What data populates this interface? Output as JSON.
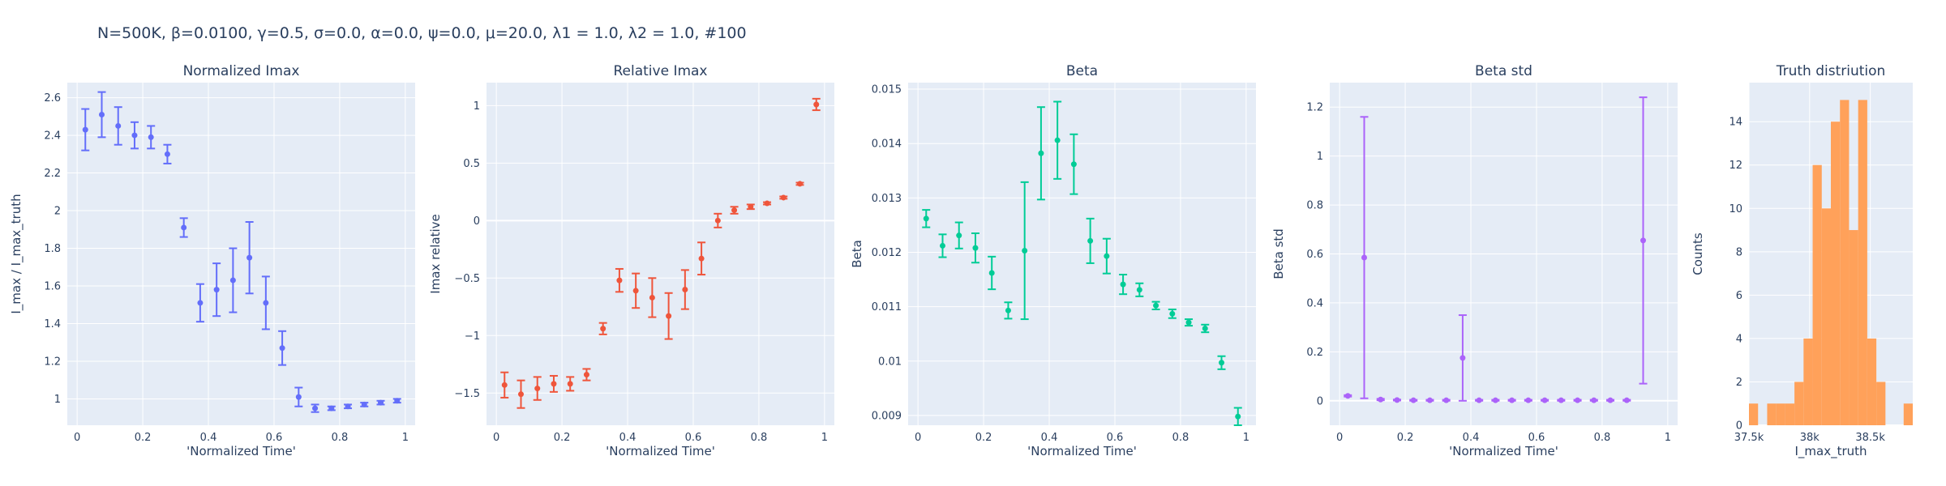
{
  "title": "N=500K, β=0.0100, γ=0.5, σ=0.0,  α=0.0, ψ=0.0, μ=20.0, λ1 = 1.0, λ2 = 1.0, #100",
  "chart_data": [
    {
      "type": "scatter",
      "title": "Normalized Imax",
      "xlabel": "'Normalized Time'",
      "ylabel": "I_max / I_max_truth",
      "color": "#636efa",
      "xlim": [
        -0.03,
        1.03
      ],
      "ylim": [
        0.86,
        2.68
      ],
      "xticks": [
        0,
        0.2,
        0.4,
        0.6,
        0.8,
        1
      ],
      "xticklabels": [
        "0",
        "0.2",
        "0.4",
        "0.6",
        "0.8",
        "1"
      ],
      "yticks": [
        1,
        1.2,
        1.4,
        1.6,
        1.8,
        2,
        2.2,
        2.4,
        2.6
      ],
      "yticklabels": [
        "1",
        "1.2",
        "1.4",
        "1.6",
        "1.8",
        "2",
        "2.2",
        "2.4",
        "2.6"
      ],
      "x": [
        0.025,
        0.075,
        0.125,
        0.175,
        0.225,
        0.275,
        0.325,
        0.375,
        0.425,
        0.475,
        0.525,
        0.575,
        0.625,
        0.675,
        0.725,
        0.775,
        0.825,
        0.875,
        0.925,
        0.975
      ],
      "y": [
        2.43,
        2.51,
        2.45,
        2.4,
        2.39,
        2.3,
        1.91,
        1.51,
        1.58,
        1.63,
        1.75,
        1.51,
        1.27,
        1.01,
        0.95,
        0.95,
        0.96,
        0.97,
        0.98,
        0.99
      ],
      "error": [
        0.11,
        0.12,
        0.1,
        0.07,
        0.06,
        0.05,
        0.05,
        0.1,
        0.14,
        0.17,
        0.19,
        0.14,
        0.09,
        0.05,
        0.02,
        0.01,
        0.01,
        0.01,
        0.01,
        0.01
      ]
    },
    {
      "type": "scatter",
      "title": "Relative Imax",
      "xlabel": "'Normalized Time'",
      "ylabel": "Imax relative",
      "color": "#ef553b",
      "xlim": [
        -0.03,
        1.03
      ],
      "ylim": [
        -1.78,
        1.2
      ],
      "xticks": [
        0,
        0.2,
        0.4,
        0.6,
        0.8,
        1
      ],
      "xticklabels": [
        "0",
        "0.2",
        "0.4",
        "0.6",
        "0.8",
        "1"
      ],
      "yticks": [
        -1.5,
        -1,
        -0.5,
        0,
        0.5,
        1
      ],
      "yticklabels": [
        "−1.5",
        "−1",
        "−0.5",
        "0",
        "0.5",
        "1"
      ],
      "x": [
        0.025,
        0.075,
        0.125,
        0.175,
        0.225,
        0.275,
        0.325,
        0.375,
        0.425,
        0.475,
        0.525,
        0.575,
        0.625,
        0.675,
        0.725,
        0.775,
        0.825,
        0.875,
        0.925,
        0.975
      ],
      "y": [
        -1.43,
        -1.51,
        -1.46,
        -1.42,
        -1.42,
        -1.34,
        -0.94,
        -0.52,
        -0.61,
        -0.67,
        -0.83,
        -0.6,
        -0.33,
        0.0,
        0.09,
        0.12,
        0.15,
        0.2,
        0.32,
        1.01
      ],
      "error": [
        0.11,
        0.12,
        0.1,
        0.07,
        0.06,
        0.05,
        0.05,
        0.1,
        0.15,
        0.17,
        0.2,
        0.17,
        0.14,
        0.06,
        0.03,
        0.02,
        0.01,
        0.01,
        0.01,
        0.05
      ]
    },
    {
      "type": "scatter",
      "title": "Beta",
      "xlabel": "'Normalized Time'",
      "ylabel": "Beta",
      "color": "#00cc96",
      "xlim": [
        -0.03,
        1.03
      ],
      "ylim": [
        0.00882,
        0.01512
      ],
      "xticks": [
        0,
        0.2,
        0.4,
        0.6,
        0.8,
        1
      ],
      "xticklabels": [
        "0",
        "0.2",
        "0.4",
        "0.6",
        "0.8",
        "1"
      ],
      "yticks": [
        0.009,
        0.01,
        0.011,
        0.012,
        0.013,
        0.014,
        0.015
      ],
      "yticklabels": [
        "0.009",
        "0.01",
        "0.011",
        "0.012",
        "0.013",
        "0.014",
        "0.015"
      ],
      "x": [
        0.025,
        0.075,
        0.125,
        0.175,
        0.225,
        0.275,
        0.325,
        0.375,
        0.425,
        0.475,
        0.525,
        0.575,
        0.625,
        0.675,
        0.725,
        0.775,
        0.825,
        0.875,
        0.925,
        0.975
      ],
      "y": [
        0.01262,
        0.01212,
        0.01231,
        0.01208,
        0.01162,
        0.01093,
        0.01203,
        0.01382,
        0.01406,
        0.01362,
        0.01221,
        0.01193,
        0.01141,
        0.01131,
        0.01102,
        0.01087,
        0.01071,
        0.0106,
        0.00997,
        0.00898
      ],
      "error": [
        0.00016,
        0.00021,
        0.00024,
        0.00027,
        0.0003,
        0.00015,
        0.00126,
        0.00085,
        0.00071,
        0.00055,
        0.00041,
        0.00032,
        0.00018,
        0.00012,
        7e-05,
        8e-05,
        6e-05,
        7e-05,
        0.00012,
        0.00016
      ]
    },
    {
      "type": "scatter",
      "title": "Beta std",
      "xlabel": "'Normalized Time'",
      "ylabel": "Beta std",
      "color": "#ab63fa",
      "xlim": [
        -0.03,
        1.03
      ],
      "ylim": [
        -0.1,
        1.3
      ],
      "xticks": [
        0,
        0.2,
        0.4,
        0.6,
        0.8,
        1
      ],
      "xticklabels": [
        "0",
        "0.2",
        "0.4",
        "0.6",
        "0.8",
        "1"
      ],
      "yticks": [
        0,
        0.2,
        0.4,
        0.6,
        0.8,
        1,
        1.2
      ],
      "yticklabels": [
        "0",
        "0.2",
        "0.4",
        "0.6",
        "0.8",
        "1",
        "1.2"
      ],
      "x": [
        0.025,
        0.075,
        0.125,
        0.175,
        0.225,
        0.275,
        0.325,
        0.375,
        0.425,
        0.475,
        0.525,
        0.575,
        0.625,
        0.675,
        0.725,
        0.775,
        0.825,
        0.875,
        0.925
      ],
      "y": [
        0.02,
        0.585,
        0.005,
        0.003,
        0.002,
        0.002,
        0.002,
        0.175,
        0.002,
        0.002,
        0.002,
        0.002,
        0.002,
        0.002,
        0.002,
        0.002,
        0.002,
        0.002,
        0.655
      ],
      "error": [
        0.003,
        0.575,
        0.003,
        0.002,
        0.002,
        0.002,
        0.002,
        0.175,
        0.002,
        0.002,
        0.002,
        0.002,
        0.002,
        0.002,
        0.002,
        0.002,
        0.002,
        0.002,
        0.585
      ]
    },
    {
      "type": "bar",
      "title": "Truth distriution",
      "xlabel": "I_max_truth",
      "ylabel": "Counts",
      "color": "#ffa15a",
      "xlim": [
        37500,
        38850
      ],
      "ylim": [
        0,
        15.8
      ],
      "xticks": [
        37500,
        38000,
        38500
      ],
      "xticklabels": [
        "37.5k",
        "38k",
        "38.5k"
      ],
      "yticks": [
        0,
        2,
        4,
        6,
        8,
        10,
        12,
        14
      ],
      "yticklabels": [
        "0",
        "2",
        "4",
        "6",
        "8",
        "10",
        "12",
        "14"
      ],
      "bin_edges": [
        37500,
        37575,
        37650,
        37725,
        37800,
        37875,
        37950,
        38025,
        38100,
        38175,
        38250,
        38325,
        38400,
        38475,
        38550,
        38625,
        38700,
        38775,
        38850
      ],
      "values": [
        1,
        0,
        1,
        1,
        1,
        2,
        4,
        12,
        10,
        14,
        15,
        9,
        15,
        4,
        2,
        0,
        0,
        1
      ]
    }
  ]
}
